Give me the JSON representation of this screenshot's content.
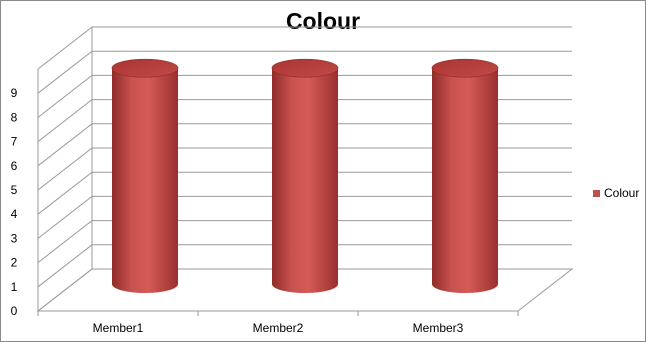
{
  "chart_data": {
    "type": "bar",
    "title": "Colour",
    "categories": [
      "Member1",
      "Member2",
      "Member3"
    ],
    "series": [
      {
        "name": "Colour",
        "values": [
          9,
          9,
          9
        ],
        "color": "#c0504d"
      }
    ],
    "ylim": [
      0,
      9
    ],
    "yticks": [
      "0",
      "1",
      "2",
      "3",
      "4",
      "5",
      "6",
      "7",
      "8",
      "9"
    ],
    "grid": true,
    "legend": "right",
    "style": "3d-cylinder"
  }
}
